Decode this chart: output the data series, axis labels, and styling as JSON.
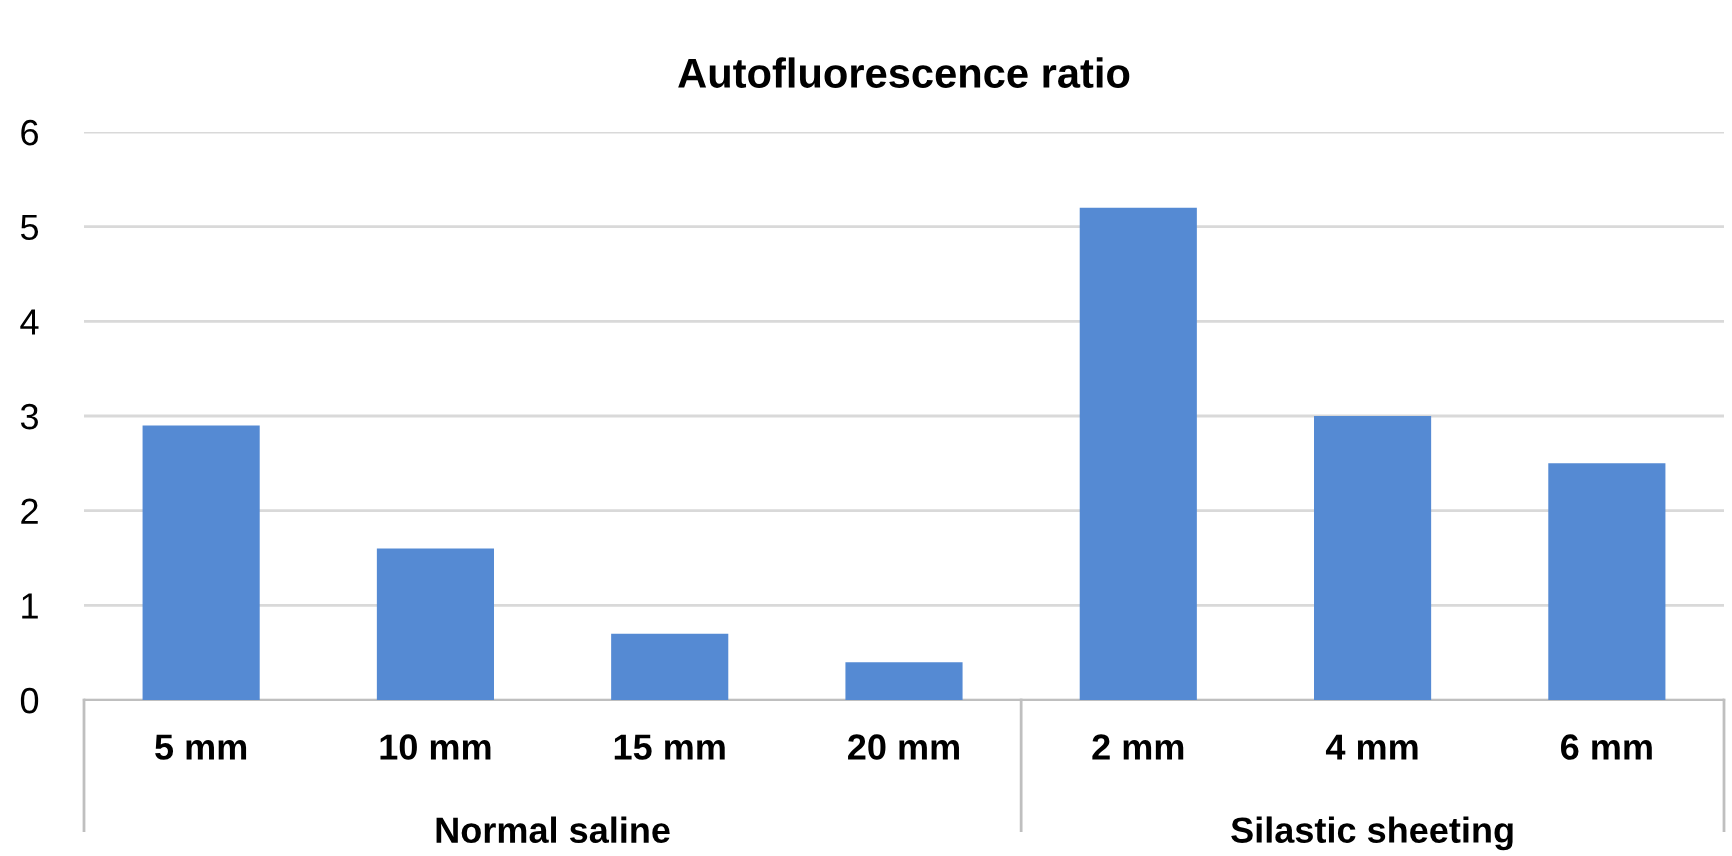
{
  "chart_data": {
    "type": "bar",
    "title": "Autofluorescence ratio",
    "categories": [
      "5 mm",
      "10 mm",
      "15 mm",
      "20 mm",
      "2 mm",
      "4 mm",
      "6 mm"
    ],
    "values": [
      2.9,
      1.6,
      0.7,
      0.4,
      5.2,
      3.0,
      2.5
    ],
    "color": "#558ad3",
    "ylim": [
      0,
      6
    ],
    "yticks": [
      0,
      1,
      2,
      3,
      4,
      5,
      6
    ],
    "grid": "y",
    "annotations": [
      "Normal saline",
      "Silastic sheeting"
    ]
  }
}
